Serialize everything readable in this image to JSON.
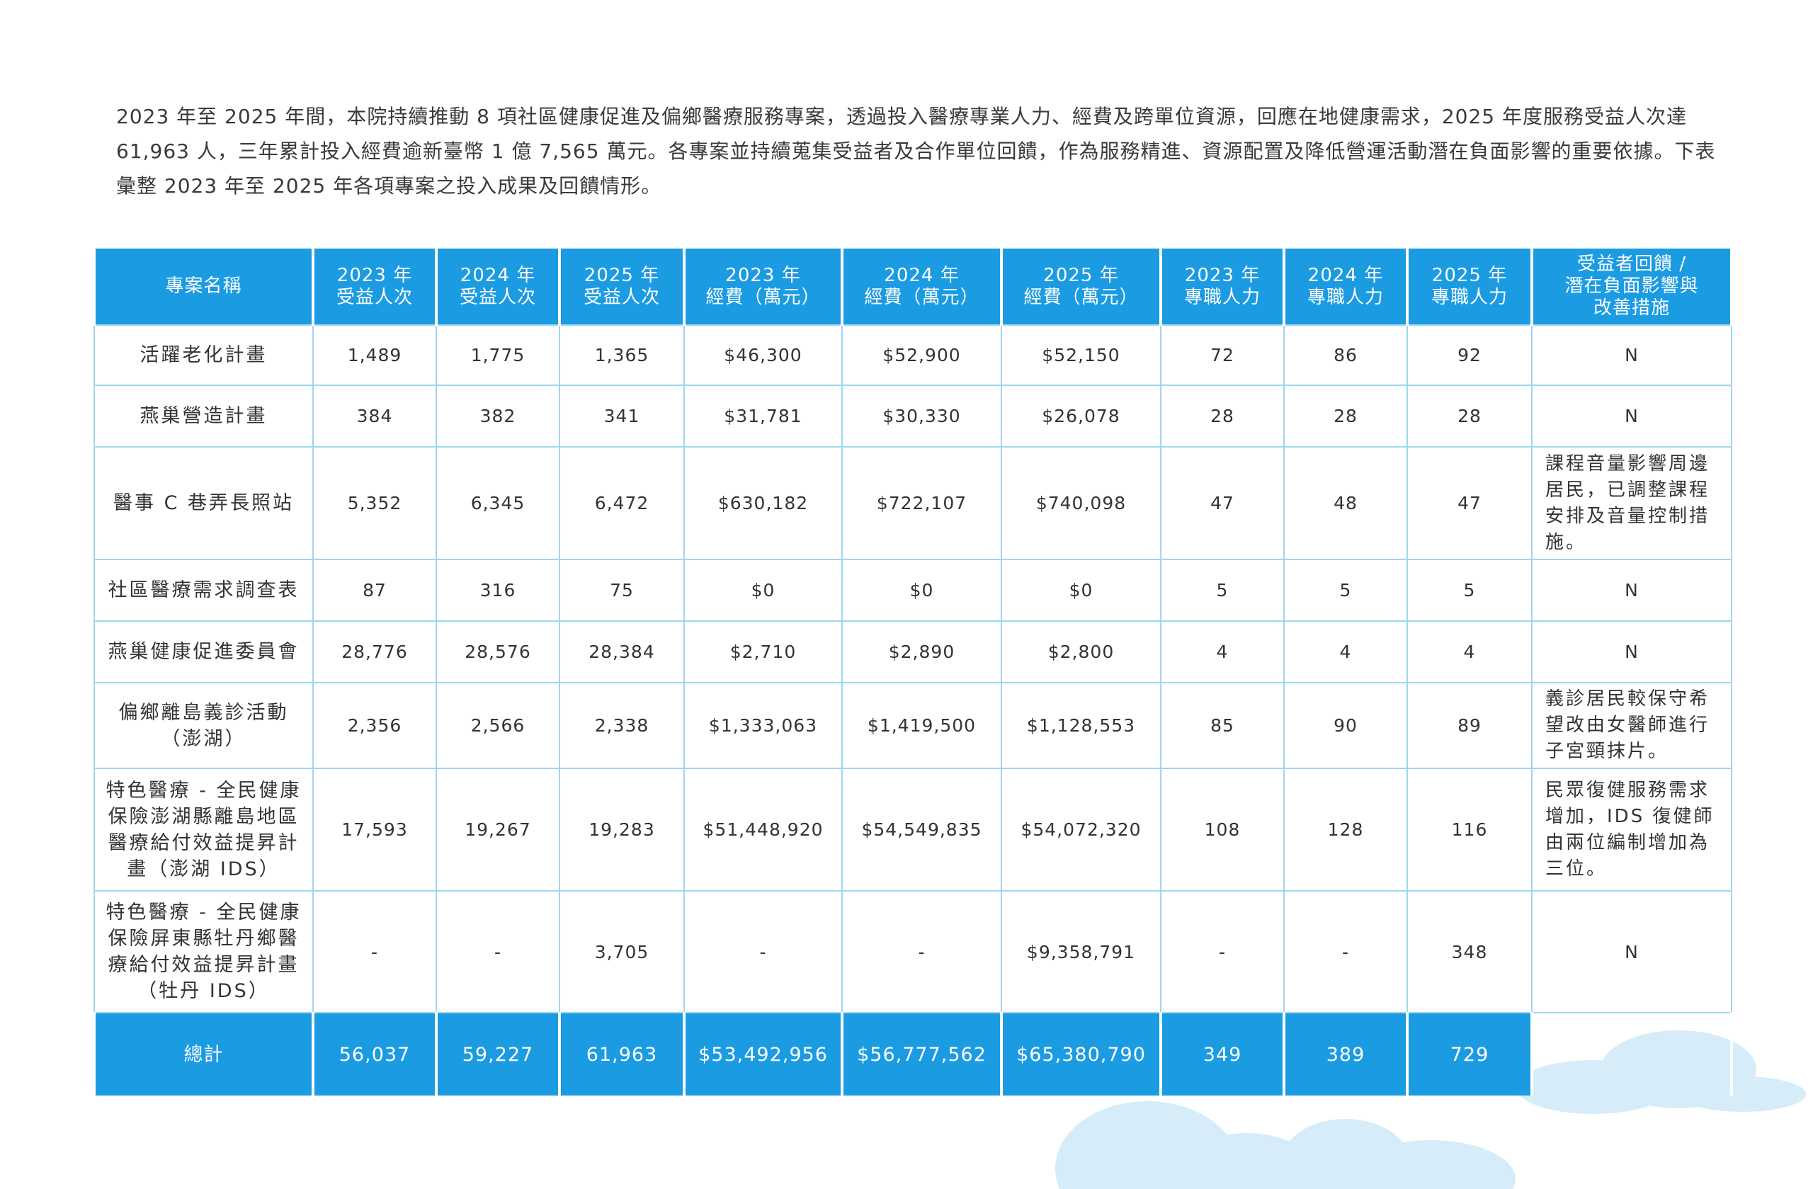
{
  "paragraph": "2023 年至 2025 年間，本院持續推動 8 項社區健康促進及偏鄉醫療服務專案，透過投入醫療專業人力、經費及跨單位資源，回應在地健康需求，2025 年度服務受益人次達 61,963 人，三年累計投入經費逾新臺幣 1 億 7,565 萬元。各專案並持續蒐集受益者及合作單位回饋，作為服務精進、資源配置及降低營運活動潛在負面影響的重要依據。下表彙整 2023 年至 2025 年各項專案之投入成果及回饋情形。",
  "table": {
    "headers": [
      "專案名稱",
      "2023 年\n受益人次",
      "2024 年\n受益人次",
      "2025 年\n受益人次",
      "2023 年\n經費（萬元）",
      "2024 年\n經費（萬元）",
      "2025 年\n經費（萬元）",
      "2023 年\n專職人力",
      "2024 年\n專職人力",
      "2025 年\n專職人力",
      "受益者回饋 /\n潛在負面影響與\n改善措施"
    ],
    "rows": [
      [
        "活躍老化計畫",
        "1,489",
        "1,775",
        "1,365",
        "$46,300",
        "$52,900",
        "$52,150",
        "72",
        "86",
        "92",
        "N"
      ],
      [
        "燕巢營造計畫",
        "384",
        "382",
        "341",
        "$31,781",
        "$30,330",
        "$26,078",
        "28",
        "28",
        "28",
        "N"
      ],
      [
        "醫事 C 巷弄長照站",
        "5,352",
        "6,345",
        "6,472",
        "$630,182",
        "$722,107",
        "$740,098",
        "47",
        "48",
        "47",
        "課程音量影響周邊居民，已調整課程安排及音量控制措施。"
      ],
      [
        "社區醫療需求調查表",
        "87",
        "316",
        "75",
        "$0",
        "$0",
        "$0",
        "5",
        "5",
        "5",
        "N"
      ],
      [
        "燕巢健康促進委員會",
        "28,776",
        "28,576",
        "28,384",
        "$2,710",
        "$2,890",
        "$2,800",
        "4",
        "4",
        "4",
        "N"
      ],
      [
        "偏鄉離島義診活動（澎湖）",
        "2,356",
        "2,566",
        "2,338",
        "$1,333,063",
        "$1,419,500",
        "$1,128,553",
        "85",
        "90",
        "89",
        "義診居民較保守希望改由女醫師進行子宮頸抹片。"
      ],
      [
        "特色醫療 - 全民健康保險澎湖縣離島地區醫療給付效益提昇計畫（澎湖 IDS）",
        "17,593",
        "19,267",
        "19,283",
        "$51,448,920",
        "$54,549,835",
        "$54,072,320",
        "108",
        "128",
        "116",
        "民眾復健服務需求增加，IDS 復健師由兩位編制增加為三位。"
      ],
      [
        "特色醫療 - 全民健康保險屏東縣牡丹鄉醫療給付效益提昇計畫（牡丹 IDS）",
        "-",
        "-",
        "3,705",
        "-",
        "-",
        "$9,358,791",
        "-",
        "-",
        "348",
        "N"
      ]
    ],
    "total": [
      "總計",
      "56,037",
      "59,227",
      "61,963",
      "$53,492,956",
      "$56,777,562",
      "$65,380,790",
      "349",
      "389",
      "729"
    ]
  }
}
